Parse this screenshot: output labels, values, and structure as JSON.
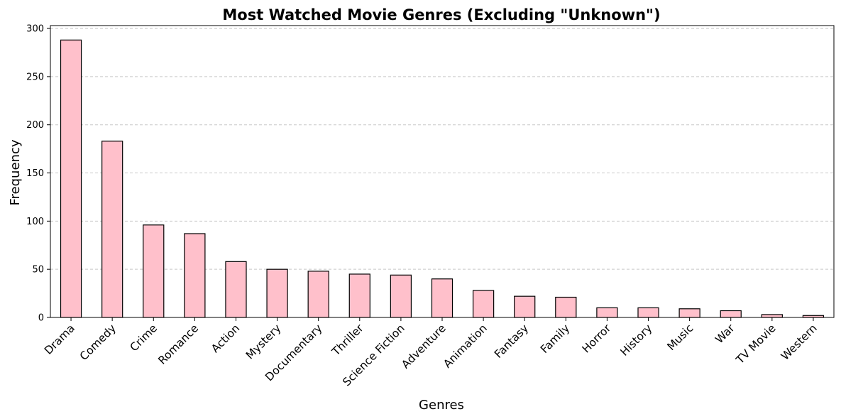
{
  "chart_data": {
    "type": "bar",
    "title": "Most Watched Movie Genres (Excluding \"Unknown\")",
    "xlabel": "Genres",
    "ylabel": "Frequency",
    "categories": [
      "Drama",
      "Comedy",
      "Crime",
      "Romance",
      "Action",
      "Mystery",
      "Documentary",
      "Thriller",
      "Science Fiction",
      "Adventure",
      "Animation",
      "Fantasy",
      "Family",
      "Horror",
      "History",
      "Music",
      "War",
      "TV Movie",
      "Western"
    ],
    "values": [
      288,
      183,
      96,
      87,
      58,
      50,
      48,
      45,
      44,
      40,
      28,
      22,
      21,
      10,
      10,
      9,
      7,
      3,
      2
    ],
    "ylim": [
      0,
      303
    ],
    "yticks": [
      0,
      50,
      100,
      150,
      200,
      250,
      300
    ],
    "grid": "y-dashed",
    "bar_color": "#ffc0cb",
    "bar_edge_color": "#000000",
    "grid_color": "#c8c8c8"
  }
}
